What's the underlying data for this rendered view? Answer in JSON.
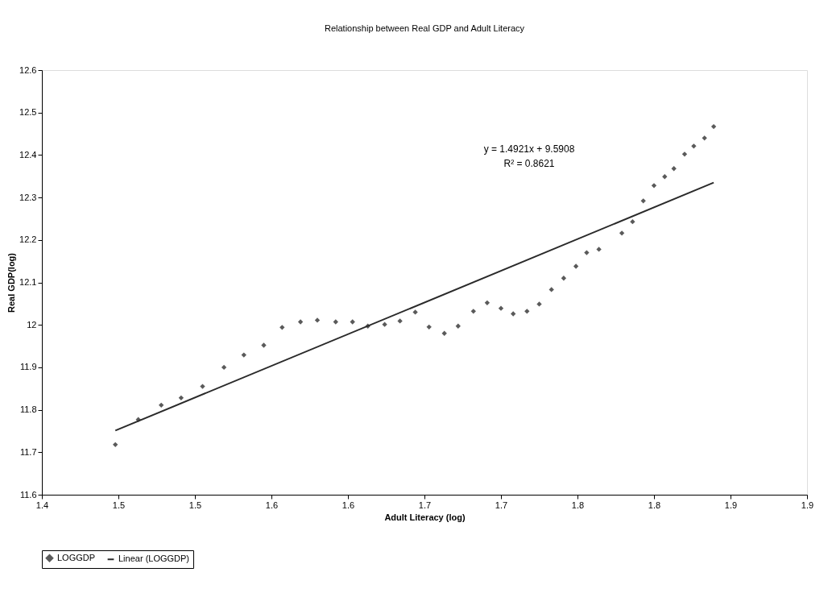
{
  "chart_data": {
    "type": "scatter",
    "title": "Relationship between Real GDP and Adult Literacy",
    "xlabel": "Adult Literacy (log)",
    "ylabel": "Real GDP(log)",
    "xlim": [
      1.4,
      1.9
    ],
    "ylim": [
      11.6,
      12.6
    ],
    "xticks": [
      1.4,
      {
        "value": 1.45,
        "label": "1.5"
      },
      1.5,
      {
        "value": 1.55,
        "label": "1.6"
      },
      1.6,
      {
        "value": 1.65,
        "label": "1.7"
      },
      1.7,
      {
        "value": 1.75,
        "label": "1.8"
      },
      1.8,
      {
        "value": 1.85,
        "label": "1.9"
      },
      1.9
    ],
    "yticks": [
      11.6,
      11.7,
      11.8,
      11.9,
      12,
      12.1,
      12.2,
      12.3,
      12.4,
      12.5,
      12.6
    ],
    "grid": false,
    "legend": "bottom",
    "annotations": [
      "y = 1.4921x + 9.5908",
      "R² = 0.8621"
    ],
    "series": [
      {
        "name": "LOGGDP",
        "marker": "diamond",
        "color": "#5a5a5a",
        "x": [
          1.448,
          1.463,
          1.478,
          1.491,
          1.505,
          1.519,
          1.532,
          1.545,
          1.557,
          1.569,
          1.58,
          1.592,
          1.603,
          1.613,
          1.624,
          1.634,
          1.644,
          1.653,
          1.663,
          1.672,
          1.682,
          1.691,
          1.7,
          1.708,
          1.717,
          1.725,
          1.733,
          1.741,
          1.749,
          1.756,
          1.764,
          1.779,
          1.786,
          1.793,
          1.8,
          1.807,
          1.813,
          1.82,
          1.826,
          1.833,
          1.839
        ],
        "values": [
          11.718,
          11.777,
          11.811,
          11.828,
          11.855,
          11.9,
          11.929,
          11.952,
          11.994,
          12.007,
          12.011,
          12.007,
          12.007,
          11.997,
          12.001,
          12.009,
          12.03,
          11.995,
          11.98,
          11.997,
          12.032,
          12.052,
          12.039,
          12.026,
          12.032,
          12.049,
          12.083,
          12.11,
          12.138,
          12.17,
          12.178,
          12.216,
          12.243,
          12.292,
          12.328,
          12.349,
          12.368,
          12.402,
          12.421,
          12.44,
          12.467
        ]
      },
      {
        "name": "Linear (LOGGDP)",
        "type": "line",
        "color": "#2a2a2a",
        "line_style": "solid",
        "x": [
          1.448,
          1.839
        ],
        "values": [
          11.751,
          12.335
        ]
      }
    ]
  }
}
